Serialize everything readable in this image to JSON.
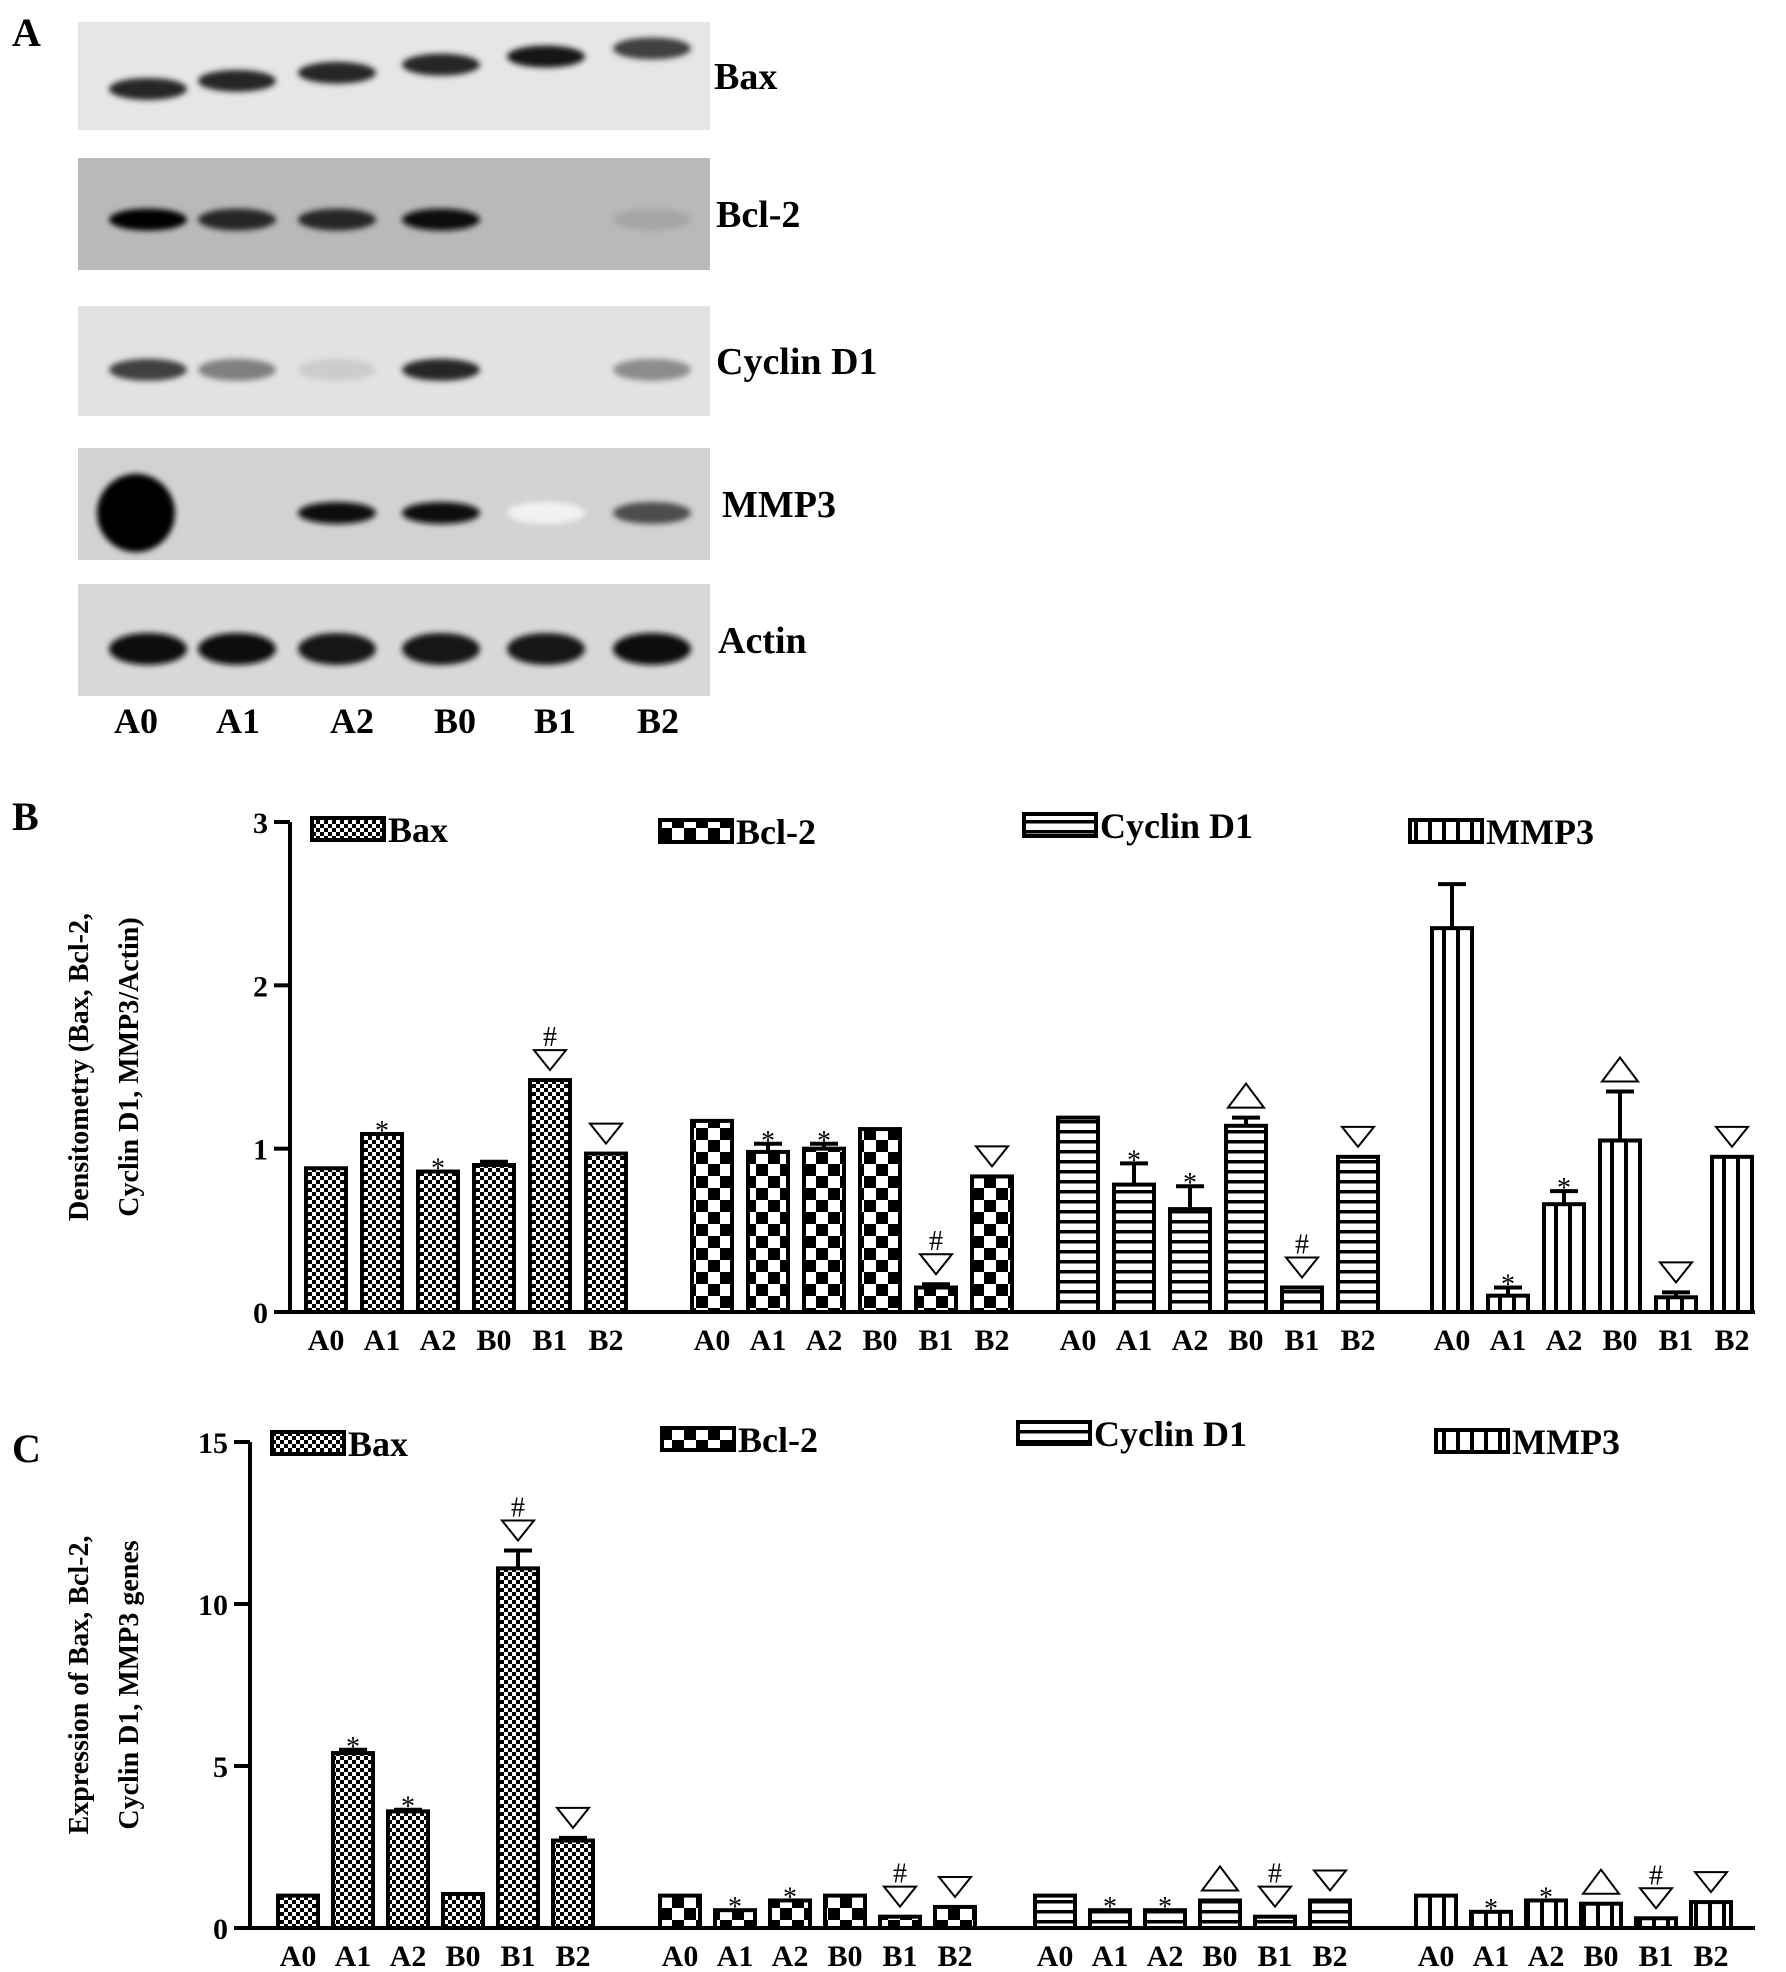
{
  "panels": {
    "a": {
      "letter": "A",
      "type": "western-blot",
      "lanes": [
        "A0",
        "A1",
        "A2",
        "B0",
        "B1",
        "B2"
      ],
      "blots": [
        {
          "label": "Bax",
          "background": "#e6e6e6",
          "band_intensity": [
            0.85,
            0.85,
            0.85,
            0.85,
            0.9,
            0.75
          ]
        },
        {
          "label": "Bcl-2",
          "background": "#b9b9b9",
          "band_intensity": [
            1.0,
            0.85,
            0.85,
            0.95,
            0.0,
            0.35
          ]
        },
        {
          "label": "Cyclin D1",
          "background": "#e2e2e2",
          "band_intensity": [
            0.75,
            0.5,
            0.2,
            0.85,
            0.0,
            0.45
          ]
        },
        {
          "label": "MMP3",
          "background": "#d2d2d2",
          "band_intensity": [
            1.0,
            0.0,
            0.95,
            0.95,
            0.05,
            0.7
          ]
        },
        {
          "label": "Actin",
          "background": "#d8d8d8",
          "band_intensity": [
            0.95,
            0.95,
            0.9,
            0.9,
            0.9,
            0.95
          ]
        }
      ]
    },
    "b": {
      "letter": "B"
    },
    "c": {
      "letter": "C"
    }
  },
  "chart_data": [
    {
      "type": "bar",
      "ylabel_lines": [
        "Densitometry (Bax, Bcl-2,",
        "Cyclin D1, MMP3/Actin)"
      ],
      "ylim": [
        0,
        3
      ],
      "yticks": [
        "0",
        "1",
        "2",
        "3"
      ],
      "categories": [
        "A0",
        "A1",
        "A2",
        "B0",
        "B1",
        "B2"
      ],
      "legend_position": "top",
      "series": [
        {
          "name": "Bax",
          "pattern": "check",
          "values": [
            0.88,
            1.09,
            0.86,
            0.9,
            1.42,
            0.97
          ],
          "errors": [
            0,
            0,
            0,
            0.02,
            0,
            0
          ],
          "marks": [
            "",
            "*",
            "*",
            "",
            "#▽",
            "▽"
          ]
        },
        {
          "name": "Bcl-2",
          "pattern": "bigcheck",
          "values": [
            1.17,
            0.98,
            1.0,
            1.12,
            0.15,
            0.83
          ],
          "errors": [
            0,
            0.05,
            0.03,
            0,
            0.02,
            0
          ],
          "marks": [
            "",
            "*",
            "*",
            "",
            "#▽",
            "▽"
          ]
        },
        {
          "name": "Cyclin D1",
          "pattern": "hlines",
          "values": [
            1.19,
            0.78,
            0.63,
            1.14,
            0.15,
            0.95
          ],
          "errors": [
            0,
            0.13,
            0.14,
            0.05,
            0,
            0
          ],
          "marks": [
            "",
            "*",
            "*",
            "△",
            "#▽",
            "▽"
          ]
        },
        {
          "name": "MMP3",
          "pattern": "vlines",
          "values": [
            2.35,
            0.1,
            0.66,
            1.05,
            0.09,
            0.95
          ],
          "errors": [
            0.27,
            0.05,
            0.08,
            0.3,
            0.03,
            0
          ],
          "marks": [
            "",
            "*",
            "*",
            "△",
            "▽",
            "▽"
          ]
        }
      ]
    },
    {
      "type": "bar",
      "ylabel_lines": [
        "Expression of Bax, Bcl-2,",
        "Cyclin D1, MMP3 genes"
      ],
      "ylim": [
        0,
        15
      ],
      "yticks": [
        "0",
        "5",
        "10",
        "15"
      ],
      "categories": [
        "A0",
        "A1",
        "A2",
        "B0",
        "B1",
        "B2"
      ],
      "legend_position": "top",
      "series": [
        {
          "name": "Bax",
          "pattern": "check",
          "values": [
            1.0,
            5.4,
            3.6,
            1.05,
            11.1,
            2.7
          ],
          "errors": [
            0,
            0.1,
            0.05,
            0,
            0.55,
            0.08
          ],
          "marks": [
            "",
            "*",
            "*",
            "",
            "#▽",
            "▽"
          ]
        },
        {
          "name": "Bcl-2",
          "pattern": "bigcheck",
          "values": [
            1.0,
            0.55,
            0.85,
            1.0,
            0.35,
            0.65
          ],
          "errors": [
            0,
            0,
            0,
            0,
            0,
            0
          ],
          "marks": [
            "",
            "*",
            "*",
            "",
            "#▽",
            "▽"
          ]
        },
        {
          "name": "Cyclin D1",
          "pattern": "hlines",
          "values": [
            1.0,
            0.55,
            0.55,
            0.85,
            0.35,
            0.85
          ],
          "errors": [
            0,
            0,
            0,
            0,
            0,
            0
          ],
          "marks": [
            "",
            "*",
            "*",
            "△",
            "#▽",
            "▽"
          ]
        },
        {
          "name": "MMP3",
          "pattern": "vlines",
          "values": [
            1.0,
            0.5,
            0.85,
            0.75,
            0.3,
            0.8
          ],
          "errors": [
            0,
            0,
            0,
            0,
            0,
            0
          ],
          "marks": [
            "",
            "*",
            "*",
            "△",
            "#▽",
            "▽"
          ]
        }
      ]
    }
  ]
}
